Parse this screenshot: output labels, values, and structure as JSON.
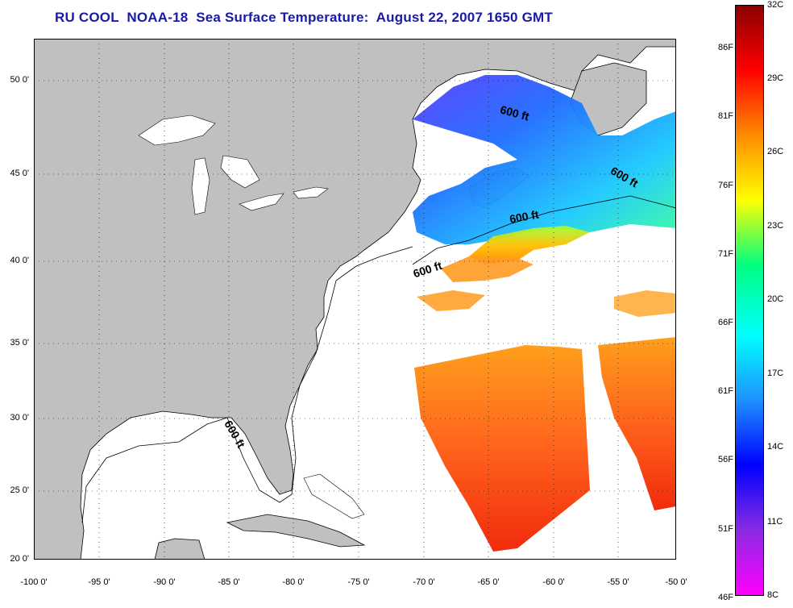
{
  "title": "RU COOL  NOAA-18  Sea Surface Temperature:  August 22, 2007 1650 GMT",
  "map": {
    "lat_labels": [
      "50 0'",
      "45 0'",
      "40 0'",
      "35 0'",
      "30 0'",
      "25 0'",
      "20 0'"
    ],
    "lon_labels": [
      "-100 0'",
      "-95 0'",
      "-90 0'",
      "-85 0'",
      "-80 0'",
      "-75 0'",
      "-70 0'",
      "-65 0'",
      "-60 0'",
      "-55 0'",
      "-50 0'"
    ],
    "contour_labels": [
      "600 ft",
      "600 ft",
      "600 ft",
      "600 ft",
      "600 ft"
    ],
    "land_color": "#c0c0c0",
    "ocean_color": "#ffffff"
  },
  "colorbar": {
    "fahrenheit_labels": [
      "86F",
      "81F",
      "76F",
      "71F",
      "66F",
      "61F",
      "56F",
      "51F",
      "46F"
    ],
    "celsius_labels": [
      "32C",
      "29C",
      "26C",
      "23C",
      "20C",
      "17C",
      "14C",
      "11C",
      "8C"
    ],
    "colors": [
      "#8b0000",
      "#ff0000",
      "#ff8c00",
      "#ffff00",
      "#00ff80",
      "#00ffff",
      "#1e90ff",
      "#0000ff",
      "#8a2be2",
      "#ff00ff"
    ]
  }
}
